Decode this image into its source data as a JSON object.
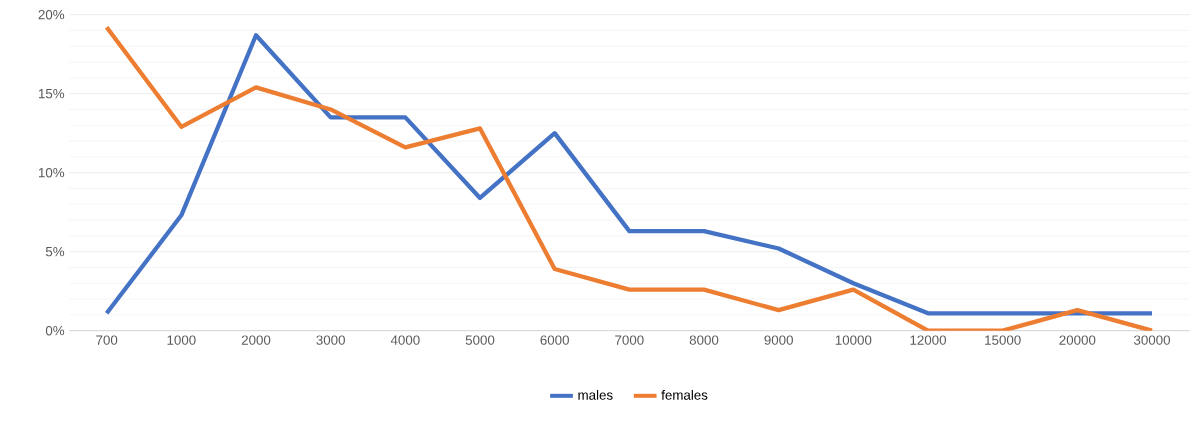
{
  "chart_data": {
    "type": "line",
    "categories": [
      "700",
      "1000",
      "2000",
      "3000",
      "4000",
      "5000",
      "6000",
      "7000",
      "8000",
      "9000",
      "10000",
      "12000",
      "15000",
      "20000",
      "30000"
    ],
    "series": [
      {
        "name": "males",
        "color": "#4472c4",
        "values": [
          1.1,
          7.3,
          18.7,
          13.5,
          13.5,
          8.4,
          12.5,
          6.3,
          6.3,
          5.2,
          3.0,
          1.1,
          1.1,
          1.1,
          1.1
        ]
      },
      {
        "name": "females",
        "color": "#ed7d31",
        "values": [
          19.2,
          12.9,
          15.4,
          14.0,
          11.6,
          12.8,
          3.9,
          2.6,
          2.6,
          1.3,
          2.6,
          0,
          0,
          1.3,
          0
        ]
      }
    ],
    "ylim": [
      0,
      20
    ],
    "yticks": [
      {
        "value": 0,
        "label": "0%"
      },
      {
        "value": 5,
        "label": "5%"
      },
      {
        "value": 10,
        "label": "10%"
      },
      {
        "value": 15,
        "label": "15%"
      },
      {
        "value": 20,
        "label": "20%"
      }
    ],
    "grid": "y",
    "legend": "bottom",
    "marker": "none",
    "line_style": "solid"
  }
}
